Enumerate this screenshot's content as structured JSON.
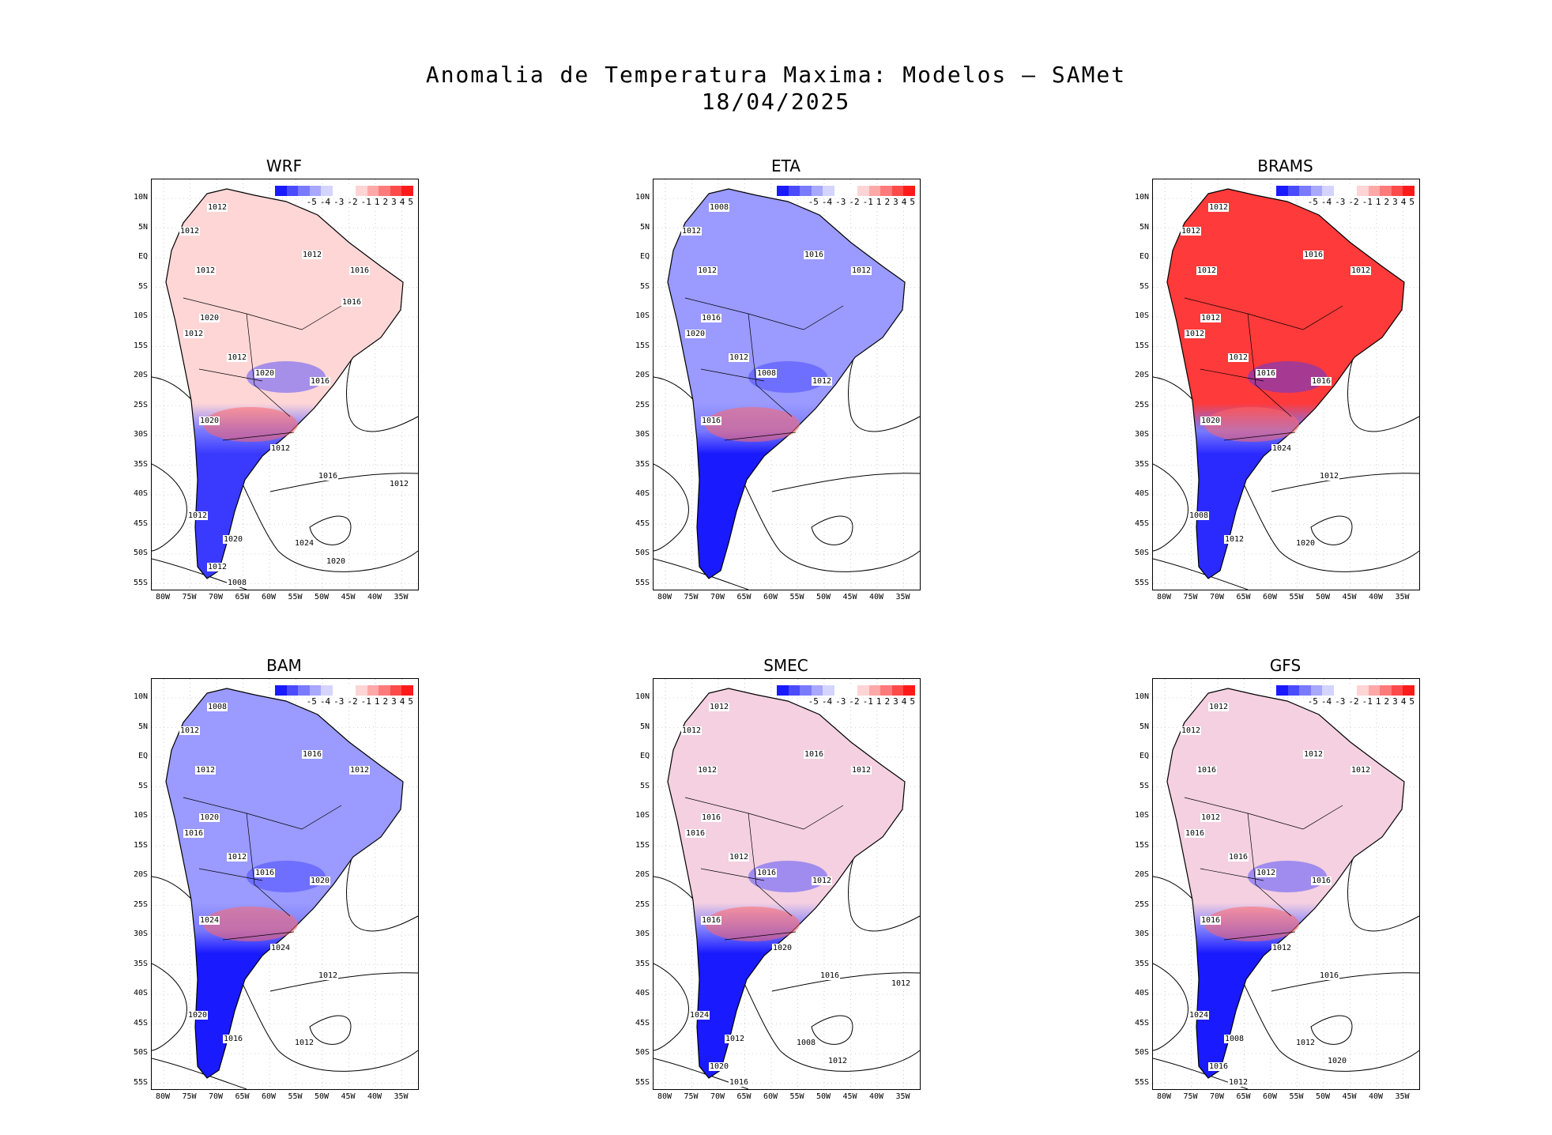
{
  "title_line1": "Anomalia de Temperatura Maxima: Modelos — SAMet",
  "title_line2": "18/04/2025",
  "lat_labels": [
    "10N",
    "5N",
    "EQ",
    "5S",
    "10S",
    "15S",
    "20S",
    "25S",
    "30S",
    "35S",
    "40S",
    "45S",
    "50S",
    "55S"
  ],
  "lon_labels": [
    "80W",
    "75W",
    "70W",
    "65W",
    "60W",
    "55W",
    "50W",
    "45W",
    "40W",
    "35W"
  ],
  "colorbar": {
    "colors": [
      "#1a1aff",
      "#4a4aff",
      "#7a7aff",
      "#a8a8ff",
      "#d4d4ff",
      "#ffffff",
      "#ffffff",
      "#ffd4d4",
      "#ffa8a8",
      "#ff7a7a",
      "#ff4a4a",
      "#ff1a1a"
    ],
    "ticks": [
      "-5",
      "-4",
      "-3",
      "-2",
      "-1",
      "1",
      "2",
      "3",
      "4",
      "5"
    ]
  },
  "panels": [
    {
      "name": "WRF",
      "anomaly": "warm-north-cold-south",
      "isobars": [
        "1012",
        "1012",
        "1012",
        "1012",
        "1016",
        "1020",
        "1012",
        "1012",
        "1020",
        "1016",
        "1020",
        "1012",
        "1016",
        "1012",
        "1020",
        "1024",
        "1020",
        "1012",
        "1008",
        "1012",
        "1016"
      ]
    },
    {
      "name": "ETA",
      "anomaly": "cold-north-cold-south",
      "isobars": [
        "1008",
        "1012",
        "1012",
        "1016",
        "1012",
        "1016",
        "1020",
        "1012",
        "1008",
        "1012",
        "1016"
      ]
    },
    {
      "name": "BRAMS",
      "anomaly": "hot-north-cold-south",
      "isobars": [
        "1012",
        "1012",
        "1012",
        "1016",
        "1012",
        "1012",
        "1012",
        "1012",
        "1016",
        "1016",
        "1020",
        "1024",
        "1012",
        "1008",
        "1012",
        "1020"
      ]
    },
    {
      "name": "BAM",
      "anomaly": "cold-north-cold-south",
      "isobars": [
        "1008",
        "1012",
        "1012",
        "1016",
        "1012",
        "1020",
        "1016",
        "1012",
        "1016",
        "1020",
        "1024",
        "1024",
        "1012",
        "1020",
        "1016",
        "1012"
      ]
    },
    {
      "name": "SMEC",
      "anomaly": "mixed-north-cold-south",
      "isobars": [
        "1012",
        "1012",
        "1012",
        "1016",
        "1012",
        "1016",
        "1016",
        "1012",
        "1016",
        "1012",
        "1016",
        "1020",
        "1016",
        "1024",
        "1012",
        "1008",
        "1012",
        "1020",
        "1016",
        "1012"
      ]
    },
    {
      "name": "GFS",
      "anomaly": "mixed-north-cold-south",
      "isobars": [
        "1012",
        "1012",
        "1016",
        "1012",
        "1012",
        "1012",
        "1016",
        "1016",
        "1012",
        "1016",
        "1016",
        "1012",
        "1016",
        "1024",
        "1008",
        "1012",
        "1020",
        "1016",
        "1012"
      ]
    }
  ]
}
